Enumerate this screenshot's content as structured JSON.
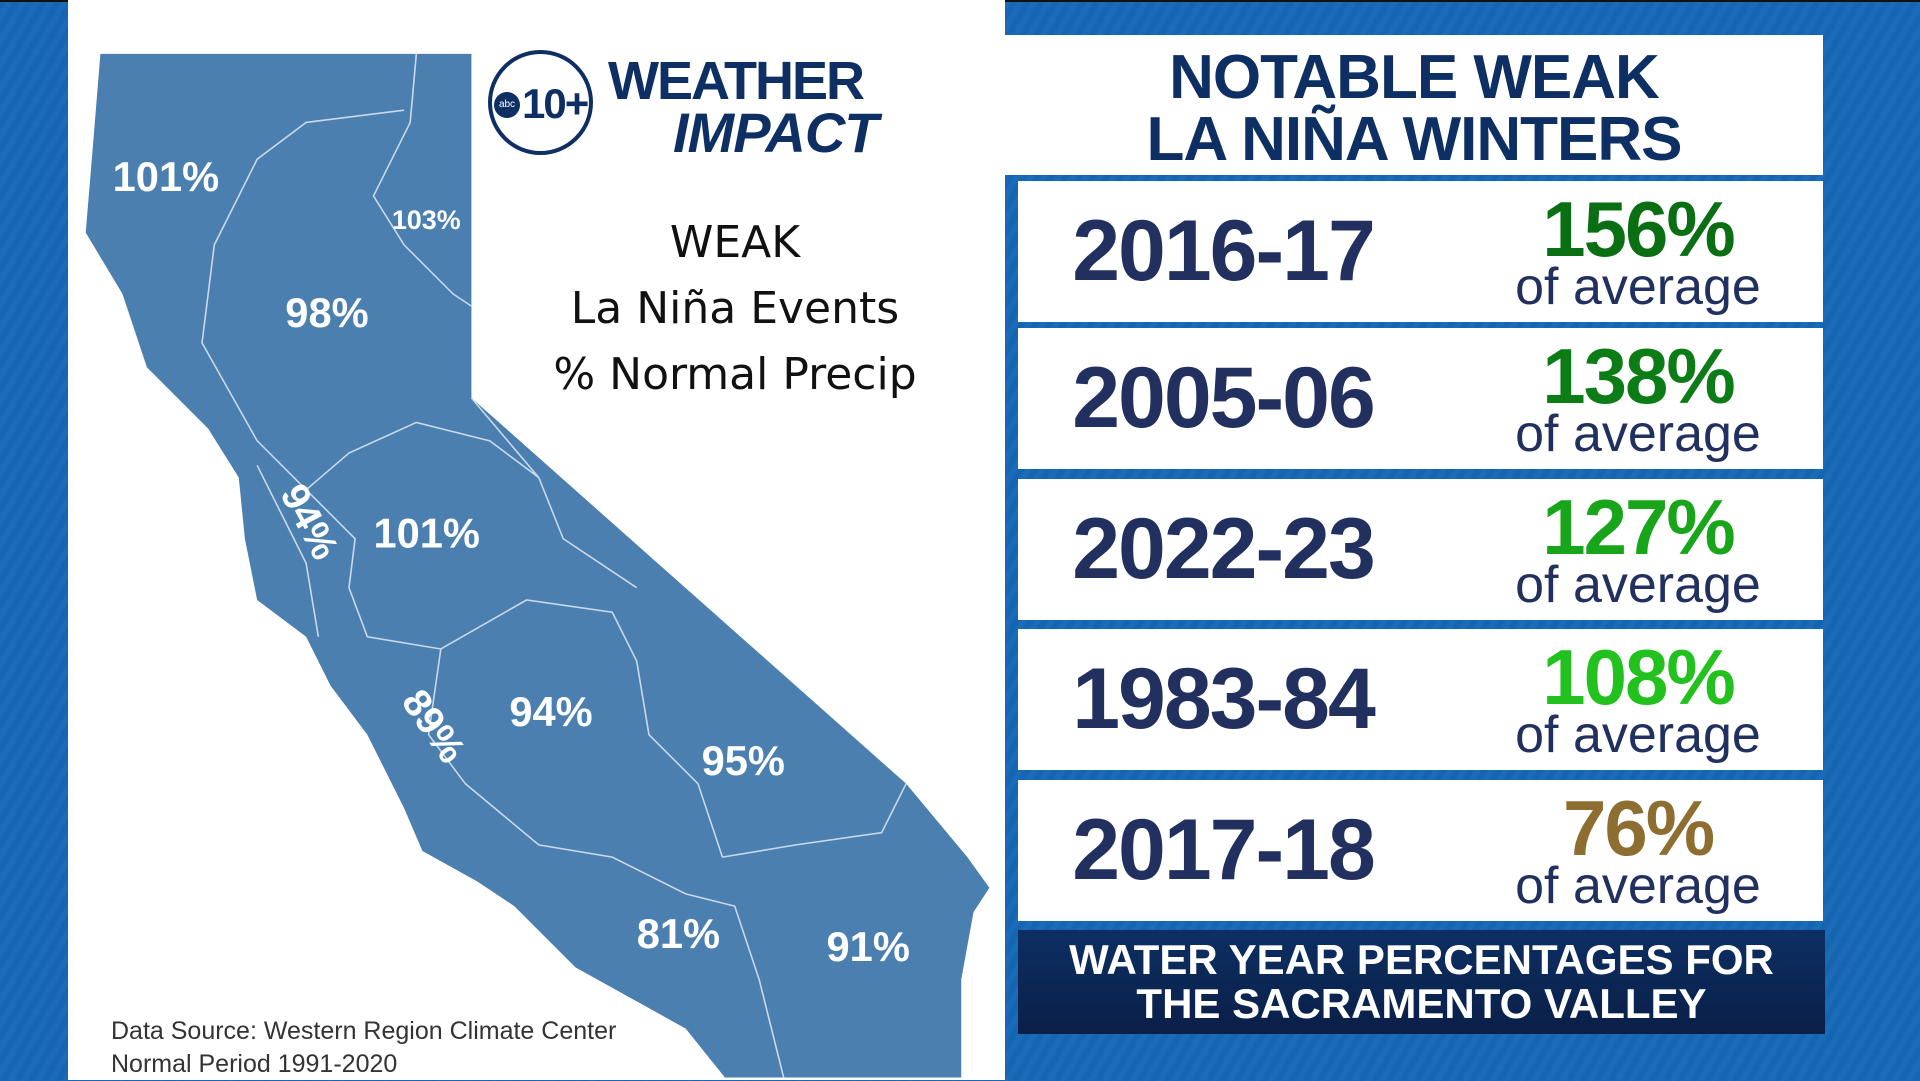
{
  "logo": {
    "network": "abc",
    "channel": "10+",
    "brand_line1": "WEATHER",
    "brand_line2": "IMPACT"
  },
  "map": {
    "subtitle": [
      "WEAK",
      "La Niña Events",
      "% Normal Precip"
    ],
    "fill_color": "#4a7fb0",
    "regions": [
      {
        "label": "101%"
      },
      {
        "label": "103%"
      },
      {
        "label": "98%"
      },
      {
        "label": "94%"
      },
      {
        "label": "101%"
      },
      {
        "label": "89%"
      },
      {
        "label": "94%"
      },
      {
        "label": "95%"
      },
      {
        "label": "81%"
      },
      {
        "label": "91%"
      }
    ],
    "source": [
      "Data Source: Western Region Climate Center",
      "Normal Period 1991-2020"
    ]
  },
  "panel": {
    "title": [
      "NOTABLE WEAK",
      "LA NIÑA WINTERS"
    ],
    "rows": [
      {
        "year": "2016-17",
        "percent": "156%",
        "suffix": "of average",
        "color": "#0a6e12"
      },
      {
        "year": "2005-06",
        "percent": "138%",
        "suffix": "of average",
        "color": "#0b7c16"
      },
      {
        "year": "2022-23",
        "percent": "127%",
        "suffix": "of average",
        "color": "#18a51a"
      },
      {
        "year": "1983-84",
        "percent": "108%",
        "suffix": "of average",
        "color": "#22c11e"
      },
      {
        "year": "2017-18",
        "percent": "76%",
        "suffix": "of average",
        "color": "#8e6d30"
      }
    ],
    "footer": [
      "WATER YEAR PERCENTAGES FOR",
      "THE SACRAMENTO VALLEY"
    ]
  }
}
